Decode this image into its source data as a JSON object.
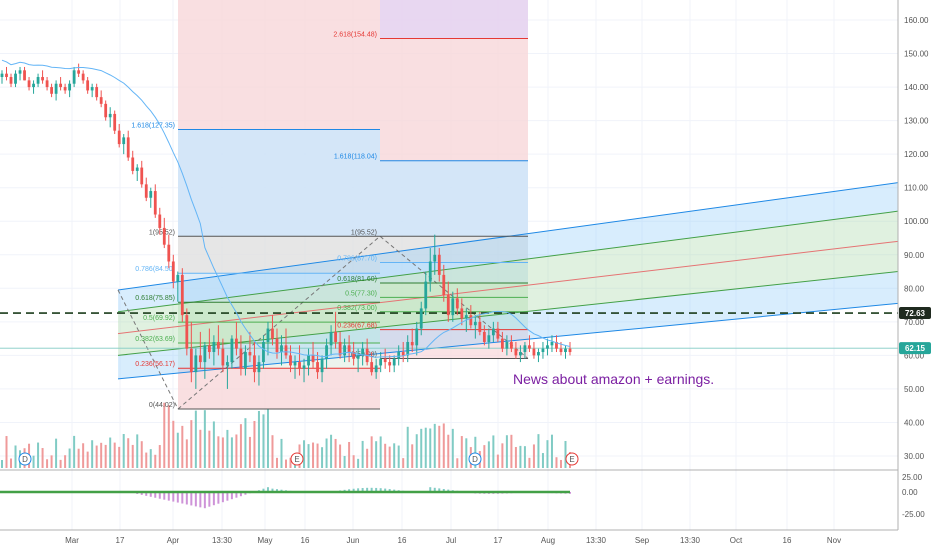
{
  "chart_data": {
    "type": "candlestick",
    "symbol_context": "daily price chart with volume and MACD histogram",
    "price_axis": {
      "ticks": [
        "160.00",
        "150.00",
        "140.00",
        "130.00",
        "120.00",
        "110.00",
        "100.00",
        "90.00",
        "80.00",
        "70.00",
        "60.00",
        "50.00",
        "40.00",
        "30.00"
      ],
      "range": [
        22,
        166
      ]
    },
    "macd_axis": {
      "ticks": [
        "25.00",
        "0.00",
        "-25.00"
      ]
    },
    "time_axis": {
      "ticks": [
        "Mar",
        "17",
        "Apr",
        "13:30",
        "May",
        "16",
        "Jun",
        "16",
        "Jul",
        "17",
        "Aug",
        "13:30",
        "Sep",
        "13:30",
        "Oct",
        "16",
        "Nov"
      ]
    },
    "price_badges": [
      {
        "label": "72.63",
        "value": 72.63,
        "style": "dark",
        "color": "#1f2a1f"
      },
      {
        "label": "62.15",
        "value": 62.15,
        "style": "teal",
        "color": "#26a69a"
      }
    ],
    "horizontal_line": {
      "value": 72.63,
      "style": "dashed",
      "color": "#1b3d1b"
    },
    "fib_extension_left": {
      "labels": [
        {
          "text": "1.618(127.35)",
          "value": 127.35,
          "color": "#1e88e5"
        },
        {
          "text": "1(95.52)",
          "value": 95.52,
          "color": "#555555"
        },
        {
          "text": "0.786(84.50)",
          "value": 84.5,
          "color": "#64b5f6"
        },
        {
          "text": "0.618(75.85)",
          "value": 75.85,
          "color": "#2e7d32"
        },
        {
          "text": "0.5(69.92)",
          "value": 69.92,
          "color": "#4caf50"
        },
        {
          "text": "0.382(63.69)",
          "value": 63.69,
          "color": "#4caf50"
        },
        {
          "text": "0.236(56.17)",
          "value": 56.17,
          "color": "#e53935"
        },
        {
          "text": "0(44.02)",
          "value": 44.02,
          "color": "#555555"
        }
      ]
    },
    "fib_extension_right": {
      "labels": [
        {
          "text": "2.618(154.48)",
          "value": 154.48,
          "color": "#e53935"
        },
        {
          "text": "1.618(118.04)",
          "value": 118.04,
          "color": "#1e88e5"
        },
        {
          "text": "1(95.52)",
          "value": 95.52,
          "color": "#555555"
        },
        {
          "text": "0.786(87.70)",
          "value": 87.7,
          "color": "#64b5f6"
        },
        {
          "text": "0.618(81.60)",
          "value": 81.6,
          "color": "#2e7d32"
        },
        {
          "text": "0.5(77.30)",
          "value": 77.3,
          "color": "#4caf50"
        },
        {
          "text": "0.382(73.00)",
          "value": 73.0,
          "color": "#4caf50"
        },
        {
          "text": "0.236(67.68)",
          "value": 67.68,
          "color": "#e53935"
        },
        {
          "text": "0(59.08)",
          "value": 59.08,
          "color": "#555555"
        }
      ]
    },
    "annotation": {
      "text": "News about amazon + earnings.",
      "color": "#7b1fa2"
    },
    "event_markers": [
      "D",
      "E",
      "D",
      "E"
    ],
    "colors": {
      "up": "#26a69a",
      "down": "#ef5350",
      "channel_blue": "#90caf9",
      "channel_green": "#a5d6a7",
      "median": "#e57373",
      "ma": "#64b5f6"
    },
    "candles": [
      [
        143,
        145,
        141,
        144
      ],
      [
        144,
        146,
        142,
        143
      ],
      [
        143,
        144,
        140,
        141
      ],
      [
        141,
        145,
        140,
        144
      ],
      [
        144,
        146,
        142,
        145
      ],
      [
        145,
        146,
        142,
        142
      ],
      [
        142,
        143,
        139,
        140
      ],
      [
        140,
        142,
        138,
        141
      ],
      [
        141,
        144,
        140,
        143
      ],
      [
        143,
        145,
        141,
        142
      ],
      [
        142,
        143,
        139,
        140
      ],
      [
        140,
        141,
        137,
        138
      ],
      [
        138,
        142,
        136,
        141
      ],
      [
        141,
        143,
        139,
        140
      ],
      [
        140,
        141,
        138,
        139
      ],
      [
        139,
        142,
        137,
        141
      ],
      [
        141,
        146,
        140,
        145
      ],
      [
        145,
        147,
        143,
        144
      ],
      [
        144,
        145,
        141,
        142
      ],
      [
        142,
        143,
        138,
        139
      ],
      [
        139,
        141,
        137,
        140
      ],
      [
        140,
        141,
        136,
        137
      ],
      [
        137,
        139,
        134,
        135
      ],
      [
        135,
        136,
        130,
        131
      ],
      [
        131,
        134,
        128,
        132
      ],
      [
        132,
        133,
        126,
        127
      ],
      [
        127,
        129,
        122,
        123
      ],
      [
        123,
        126,
        120,
        125
      ],
      [
        125,
        127,
        118,
        119
      ],
      [
        119,
        121,
        114,
        115
      ],
      [
        115,
        117,
        112,
        116
      ],
      [
        116,
        118,
        110,
        111
      ],
      [
        111,
        113,
        106,
        107
      ],
      [
        107,
        110,
        104,
        109
      ],
      [
        109,
        111,
        101,
        102
      ],
      [
        102,
        104,
        96,
        98
      ],
      [
        98,
        101,
        92,
        93
      ],
      [
        93,
        96,
        86,
        88
      ],
      [
        88,
        90,
        80,
        82
      ],
      [
        82,
        85,
        76,
        84
      ],
      [
        84,
        86,
        70,
        72
      ],
      [
        72,
        74,
        60,
        62
      ],
      [
        62,
        70,
        52,
        55
      ],
      [
        55,
        62,
        50,
        60
      ],
      [
        60,
        67,
        56,
        58
      ],
      [
        58,
        64,
        53,
        63
      ],
      [
        63,
        68,
        59,
        61
      ],
      [
        61,
        66,
        57,
        64
      ],
      [
        64,
        69,
        60,
        62
      ],
      [
        62,
        65,
        55,
        57
      ],
      [
        57,
        60,
        50,
        58
      ],
      [
        58,
        66,
        56,
        65
      ],
      [
        65,
        70,
        60,
        62
      ],
      [
        62,
        66,
        54,
        56
      ],
      [
        56,
        63,
        54,
        61
      ],
      [
        61,
        67,
        58,
        60
      ],
      [
        60,
        64,
        52,
        55
      ],
      [
        55,
        60,
        51,
        58
      ],
      [
        58,
        66,
        56,
        64
      ],
      [
        64,
        70,
        60,
        68
      ],
      [
        68,
        72,
        63,
        65
      ],
      [
        65,
        68,
        59,
        61
      ],
      [
        61,
        66,
        57,
        63
      ],
      [
        63,
        68,
        59,
        60
      ],
      [
        60,
        63,
        55,
        57
      ],
      [
        57,
        60,
        53,
        58
      ],
      [
        58,
        63,
        54,
        56
      ],
      [
        56,
        59,
        52,
        57
      ],
      [
        57,
        62,
        54,
        60
      ],
      [
        60,
        64,
        56,
        58
      ],
      [
        58,
        61,
        53,
        55
      ],
      [
        55,
        60,
        52,
        59
      ],
      [
        59,
        65,
        56,
        63
      ],
      [
        63,
        69,
        60,
        67
      ],
      [
        67,
        73,
        62,
        64
      ],
      [
        64,
        67,
        59,
        60
      ],
      [
        60,
        65,
        58,
        63
      ],
      [
        63,
        66,
        58,
        61
      ],
      [
        61,
        64,
        57,
        59
      ],
      [
        59,
        62,
        55,
        60
      ],
      [
        60,
        64,
        57,
        62
      ],
      [
        62,
        65,
        57,
        58
      ],
      [
        58,
        61,
        54,
        55
      ],
      [
        55,
        59,
        53,
        57
      ],
      [
        57,
        61,
        55,
        59
      ],
      [
        59,
        62,
        56,
        58
      ],
      [
        58,
        60,
        55,
        57
      ],
      [
        57,
        60,
        55,
        59
      ],
      [
        59,
        63,
        57,
        61
      ],
      [
        61,
        64,
        58,
        60
      ],
      [
        60,
        66,
        58,
        64
      ],
      [
        64,
        68,
        61,
        63
      ],
      [
        63,
        70,
        60,
        68
      ],
      [
        68,
        76,
        66,
        74
      ],
      [
        74,
        85,
        72,
        82
      ],
      [
        82,
        92,
        79,
        88
      ],
      [
        88,
        96,
        84,
        90
      ],
      [
        90,
        92,
        82,
        84
      ],
      [
        84,
        87,
        76,
        78
      ],
      [
        78,
        82,
        70,
        72
      ],
      [
        72,
        79,
        70,
        77
      ],
      [
        77,
        80,
        72,
        74
      ],
      [
        74,
        77,
        69,
        71
      ],
      [
        71,
        74,
        67,
        72
      ],
      [
        72,
        75,
        68,
        69
      ],
      [
        69,
        72,
        65,
        70
      ],
      [
        70,
        73,
        66,
        67
      ],
      [
        67,
        69,
        63,
        64
      ],
      [
        64,
        68,
        62,
        66
      ],
      [
        66,
        70,
        64,
        68
      ],
      [
        68,
        70,
        64,
        65
      ],
      [
        65,
        67,
        61,
        62
      ],
      [
        62,
        66,
        60,
        64
      ],
      [
        64,
        66,
        61,
        62
      ],
      [
        62,
        64,
        59,
        60
      ],
      [
        60,
        63,
        58,
        61
      ],
      [
        61,
        64,
        59,
        63
      ],
      [
        63,
        66,
        61,
        62
      ],
      [
        62,
        64,
        59,
        60
      ],
      [
        60,
        62,
        58,
        61
      ],
      [
        61,
        64,
        59,
        62
      ],
      [
        62,
        65,
        60,
        63
      ],
      [
        63,
        66,
        61,
        64
      ],
      [
        64,
        66,
        61,
        62
      ],
      [
        62,
        64,
        60,
        61
      ],
      [
        61,
        63,
        59,
        62
      ],
      [
        62,
        64,
        60,
        61
      ]
    ]
  }
}
